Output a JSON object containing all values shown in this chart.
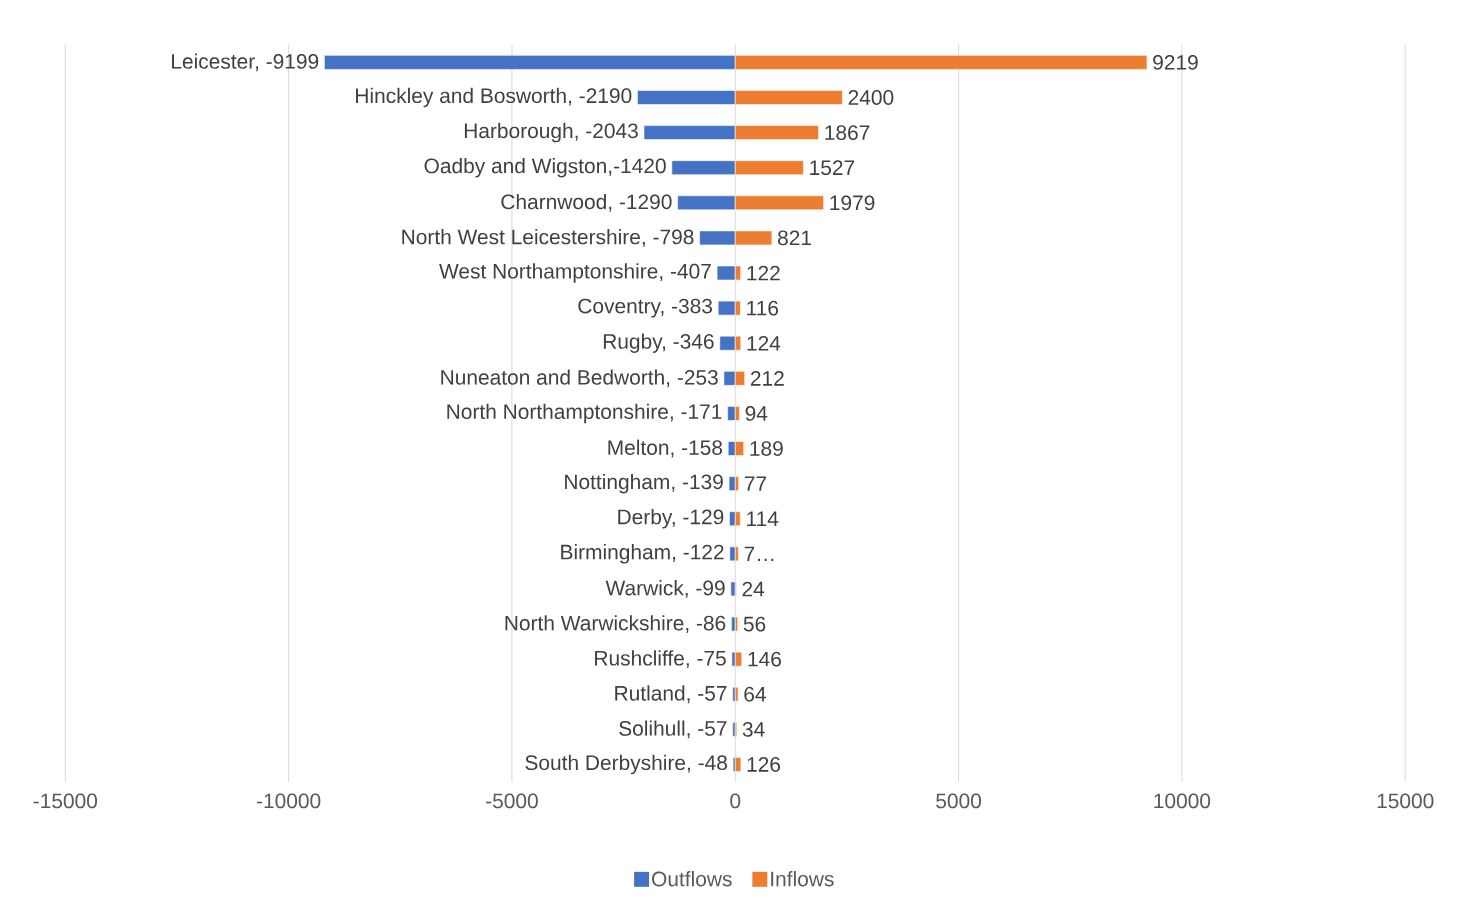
{
  "chart_data": {
    "type": "bar",
    "orientation": "horizontal",
    "stacked": true,
    "categories": [
      null,
      null,
      null,
      null,
      null,
      null,
      null,
      null,
      null,
      null,
      null,
      null,
      null,
      null,
      null,
      null,
      null,
      null,
      null,
      null,
      null
    ],
    "series": [
      {
        "name": "Outflows",
        "color": "#4472c4",
        "values": [
          -9199,
          -2190,
          -2043,
          -1420,
          -1290,
          -798,
          -407,
          -383,
          -346,
          -253,
          -171,
          -158,
          -139,
          -129,
          -122,
          -99,
          -86,
          -75,
          -57,
          -57,
          -48
        ],
        "value_labels": [
          "Leicester, -9199",
          "Hinckley and Bosworth, -2190",
          "Harborough, -2043",
          "Oadby and Wigston,-1420",
          "Charnwood, -1290",
          "North West Leicestershire, -798",
          "West Northamptonshire, -407",
          "Coventry, -383",
          "Rugby, -346",
          "Nuneaton and Bedworth, -253",
          "North Northamptonshire, -171",
          "Melton, -158",
          "Nottingham, -139",
          "Derby, -129",
          "Birmingham, -122",
          "Warwick, -99",
          "North Warwickshire, -86",
          "Rushcliffe, -75",
          "Rutland, -57",
          "Solihull, -57",
          "South Derbyshire, -48"
        ]
      },
      {
        "name": "Inflows",
        "color": "#ed7d31",
        "values": [
          9219,
          2400,
          1867,
          1527,
          1979,
          821,
          122,
          116,
          124,
          212,
          94,
          189,
          77,
          114,
          70,
          24,
          56,
          146,
          64,
          34,
          126
        ],
        "value_labels": [
          "9219",
          "2400",
          "1867",
          "1527",
          "1979",
          "821",
          "122",
          "116",
          "124",
          "212",
          "94",
          "189",
          "77",
          "114",
          "7…",
          "24",
          "56",
          "146",
          "64",
          "34",
          "126"
        ]
      }
    ],
    "xlim": [
      -15000,
      15000
    ],
    "xticks": [
      -15000,
      -10000,
      -5000,
      0,
      5000,
      10000,
      15000
    ],
    "grid": "x",
    "legend": "bottom"
  }
}
